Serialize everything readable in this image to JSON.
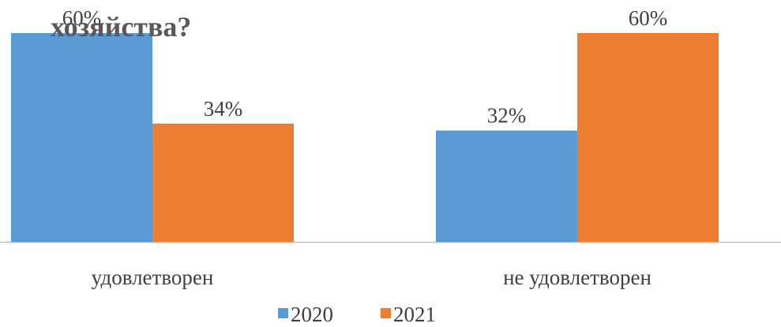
{
  "chart_data": {
    "type": "bar",
    "title": "хозяйства?",
    "categories": [
      "удовлетворен",
      "не удовлетворен"
    ],
    "series": [
      {
        "name": "2020",
        "color": "#5b9bd5",
        "values": [
          60,
          32
        ],
        "value_labels": [
          "60%",
          "32%"
        ]
      },
      {
        "name": "2021",
        "color": "#ed7d31",
        "values": [
          34,
          60
        ],
        "value_labels": [
          "34%",
          "60%"
        ]
      }
    ],
    "ylim": [
      0,
      60
    ],
    "legend": "bottom"
  }
}
